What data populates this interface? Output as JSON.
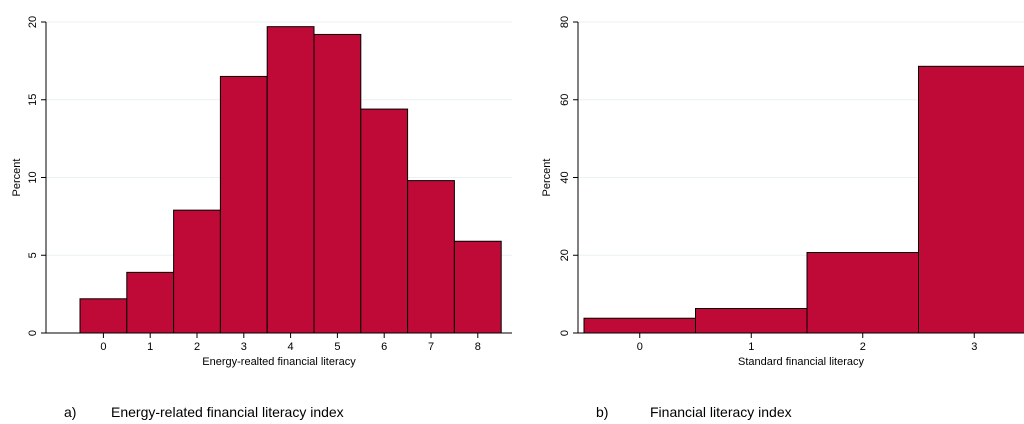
{
  "colors": {
    "bar": "#bf0a37",
    "grid": "#eaf2f3"
  },
  "captions": [
    {
      "letter": "a)",
      "text": "Energy-related financial literacy index"
    },
    {
      "letter": "b)",
      "text": "Financial literacy index"
    }
  ],
  "chart_data": [
    {
      "type": "bar",
      "xlabel": "Energy-realted financial literacy",
      "ylabel": "Percent",
      "categories": [
        "0",
        "1",
        "2",
        "3",
        "4",
        "5",
        "6",
        "7",
        "8"
      ],
      "values": [
        2.2,
        3.9,
        7.9,
        16.5,
        19.7,
        19.2,
        14.4,
        9.8,
        5.9
      ],
      "yticks": [
        "0",
        "5",
        "10",
        "15",
        "20"
      ],
      "ylim": [
        0,
        20
      ],
      "grid": true
    },
    {
      "type": "bar",
      "xlabel": "Standard financial literacy",
      "ylabel": "Percent",
      "categories": [
        "0",
        "1",
        "2",
        "3"
      ],
      "values": [
        3.8,
        6.3,
        20.7,
        68.6
      ],
      "yticks": [
        "0",
        "20",
        "40",
        "60",
        "80"
      ],
      "ylim": [
        0,
        80
      ],
      "grid": true
    }
  ]
}
